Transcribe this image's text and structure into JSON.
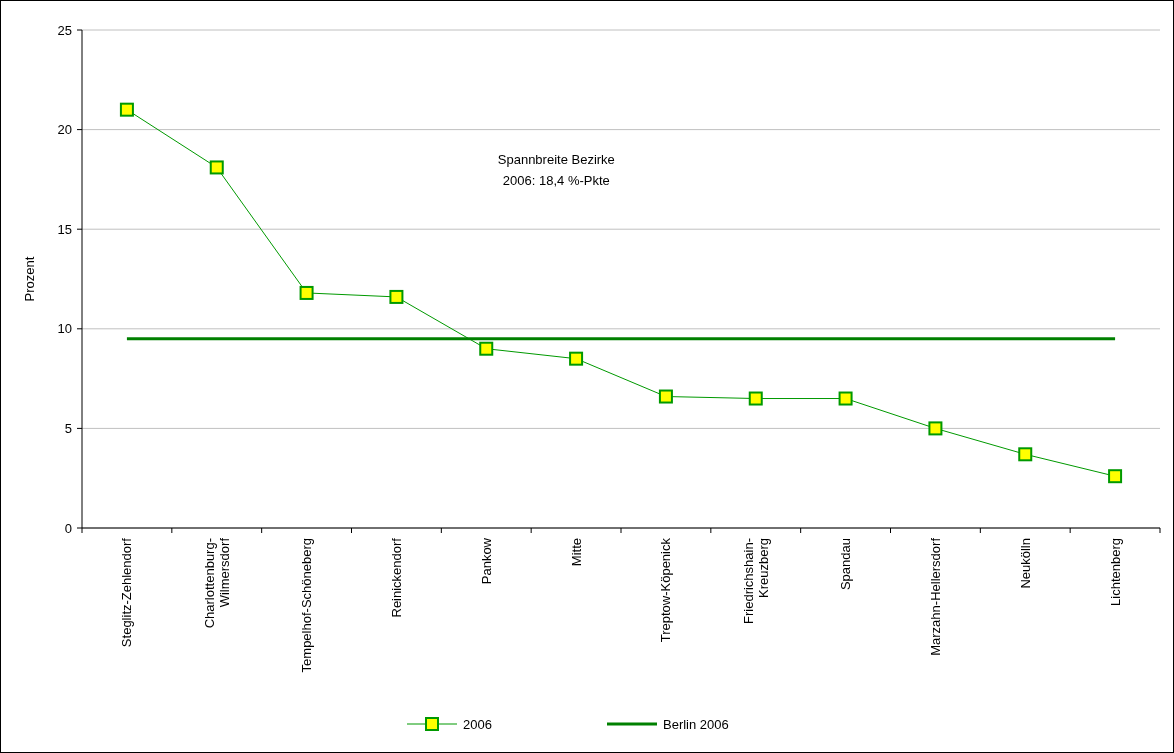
{
  "chart_data": {
    "type": "line",
    "ylabel": "Prozent",
    "categories": [
      "Steglitz-Zehlendorf",
      "Charlottenburg-\nWilmersdorf",
      "Tempelhof-Schöneberg",
      "Reinickendorf",
      "Pankow",
      "Mitte",
      "Treptow-Köpenick",
      "Friedrichshain-\nKreuzberg",
      "Spandau",
      "Marzahn-Hellersdorf",
      "Neukölln",
      "Lichtenberg"
    ],
    "series": [
      {
        "name": "2006",
        "color": "#009900",
        "marker": "square",
        "values": [
          21.0,
          18.1,
          11.8,
          11.6,
          9.0,
          8.5,
          6.6,
          6.5,
          6.5,
          5.0,
          3.7,
          2.6
        ]
      },
      {
        "name": "Berlin 2006",
        "color": "#008000",
        "marker": "none",
        "values": [
          9.5,
          9.5,
          9.5,
          9.5,
          9.5,
          9.5,
          9.5,
          9.5,
          9.5,
          9.5,
          9.5,
          9.5
        ]
      }
    ],
    "ylim": [
      0,
      25
    ],
    "yticks": [
      0,
      5,
      10,
      15,
      20,
      25
    ],
    "grid": "y",
    "legend": "bottom",
    "annotations": [
      "Spannbreite Bezirke\n2006: 18,4 %-Pkte"
    ]
  }
}
